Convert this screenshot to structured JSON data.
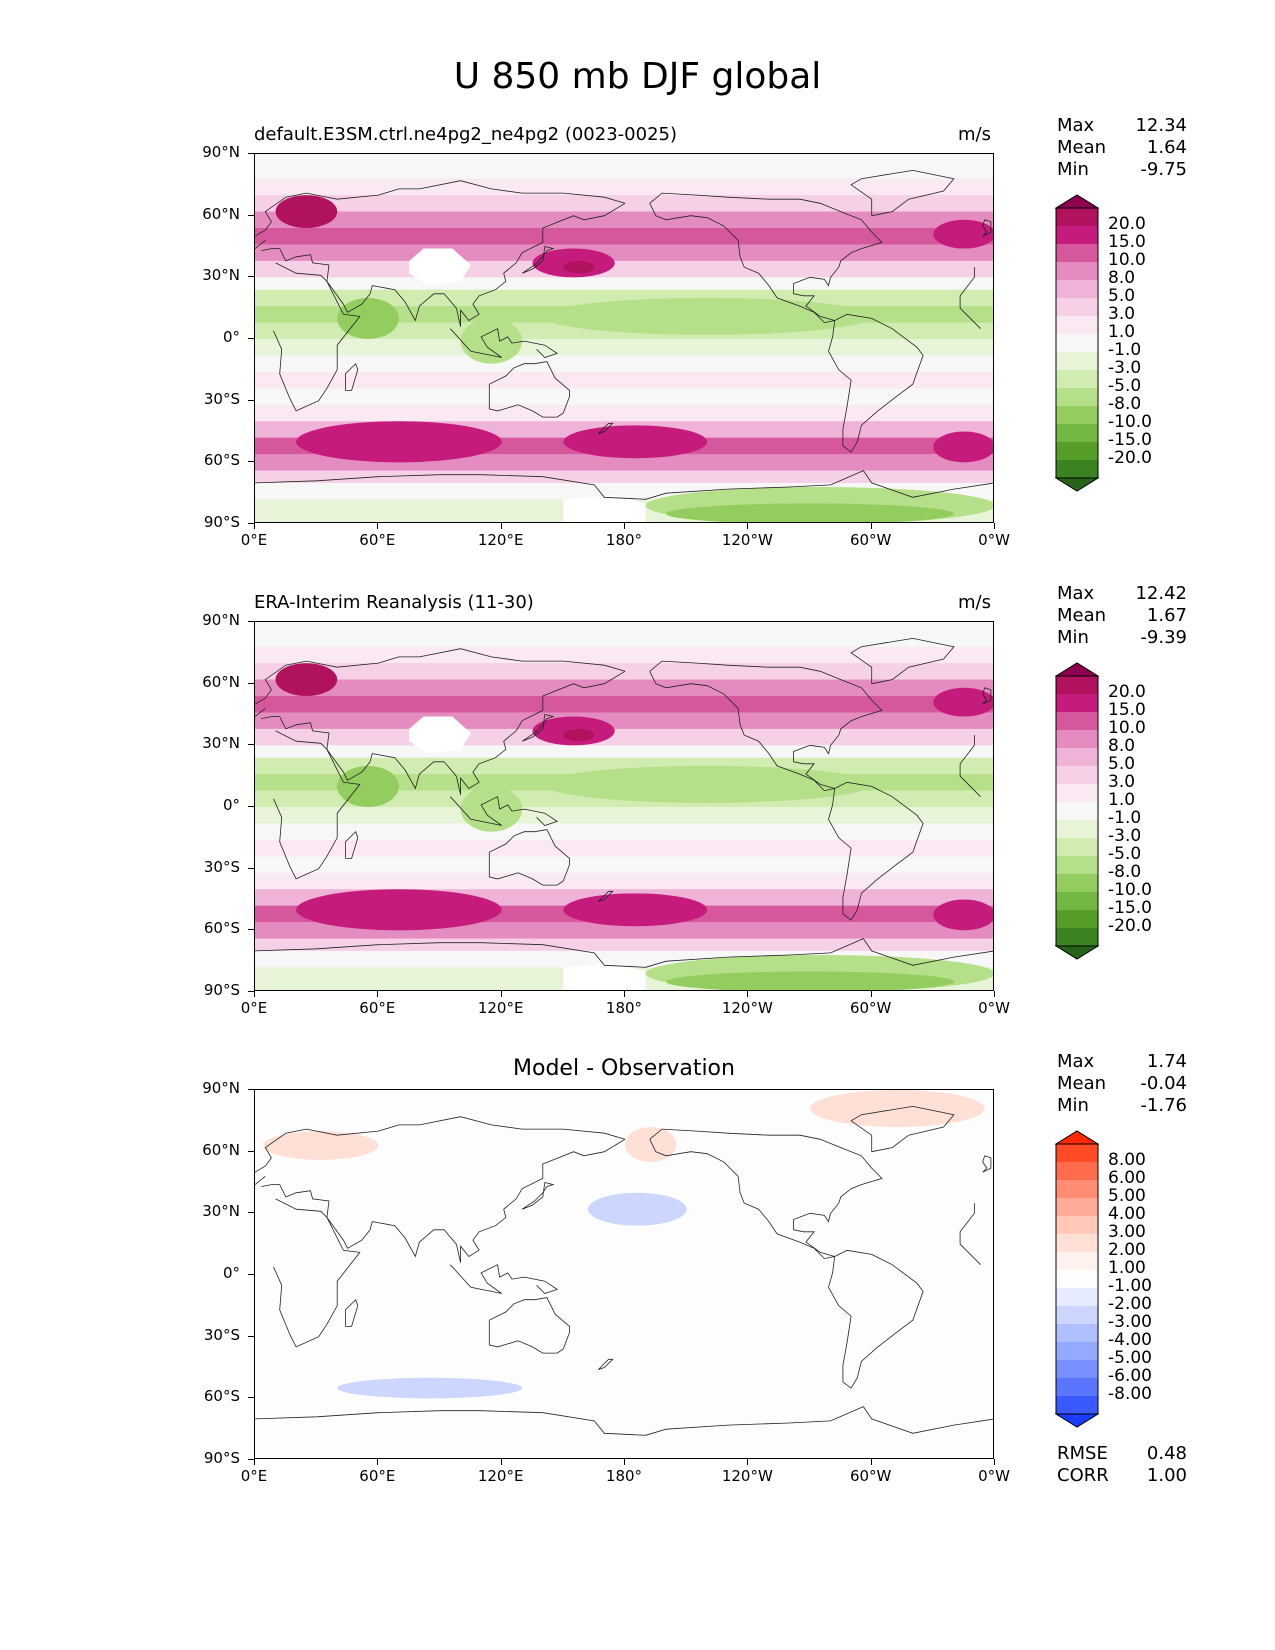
{
  "title": "U 850 mb DJF global",
  "x_ticks": [
    "0°E",
    "60°E",
    "120°E",
    "180°",
    "120°W",
    "60°W",
    "0°W"
  ],
  "y_ticks": [
    "90°N",
    "60°N",
    "30°N",
    "0°",
    "30°S",
    "60°S",
    "90°S"
  ],
  "stat_labels": {
    "max": "Max",
    "mean": "Mean",
    "min": "Min",
    "rmse": "RMSE",
    "corr": "CORR"
  },
  "panels": [
    {
      "id": "test",
      "subtitle_left": "default.E3SM.ctrl.ne4pg2_ne4pg2 (0023-0025)",
      "center_title": "",
      "units": "m/s",
      "stats": {
        "max": "12.34",
        "mean": "1.64",
        "min": "-9.75"
      }
    },
    {
      "id": "reference",
      "subtitle_left": "ERA-Interim Reanalysis (11-30)",
      "center_title": "",
      "units": "m/s",
      "stats": {
        "max": "12.42",
        "mean": "1.67",
        "min": "-9.39"
      }
    },
    {
      "id": "difference",
      "subtitle_left": "",
      "center_title": "Model - Observation",
      "units": "",
      "stats": {
        "max": "1.74",
        "mean": "-0.04",
        "min": "-1.76"
      },
      "metrics": {
        "rmse": "0.48",
        "corr": "1.00"
      }
    }
  ],
  "colorbars": {
    "field": {
      "labels": [
        "20.0",
        "15.0",
        "10.0",
        "8.0",
        "5.0",
        "3.0",
        "1.0",
        "-1.0",
        "-3.0",
        "-5.0",
        "-8.0",
        "-10.0",
        "-15.0",
        "-20.0"
      ],
      "colors": [
        "#8e0152",
        "#b0125e",
        "#c51b7d",
        "#d6589c",
        "#e48cbf",
        "#efb3d8",
        "#f6d0e6",
        "#fae8f2",
        "#f7f7f7",
        "#e8f4d8",
        "#d0ecb0",
        "#b5df88",
        "#93cd60",
        "#74b844",
        "#569d2a",
        "#3d8220",
        "#276419"
      ]
    },
    "diff": {
      "labels": [
        "8.00",
        "6.00",
        "5.00",
        "4.00",
        "3.00",
        "2.00",
        "1.00",
        "-1.00",
        "-2.00",
        "-3.00",
        "-4.00",
        "-5.00",
        "-6.00",
        "-8.00"
      ],
      "colors": [
        "#ff2a00",
        "#ff4a26",
        "#ff6b4d",
        "#ff8c73",
        "#ffab99",
        "#ffc8b8",
        "#ffe0d6",
        "#fff2ee",
        "#fdfdfd",
        "#e6ebff",
        "#ccd6ff",
        "#b0c0ff",
        "#94aaff",
        "#7890ff",
        "#5a76ff",
        "#3a5aff",
        "#1a3cff"
      ]
    }
  }
}
